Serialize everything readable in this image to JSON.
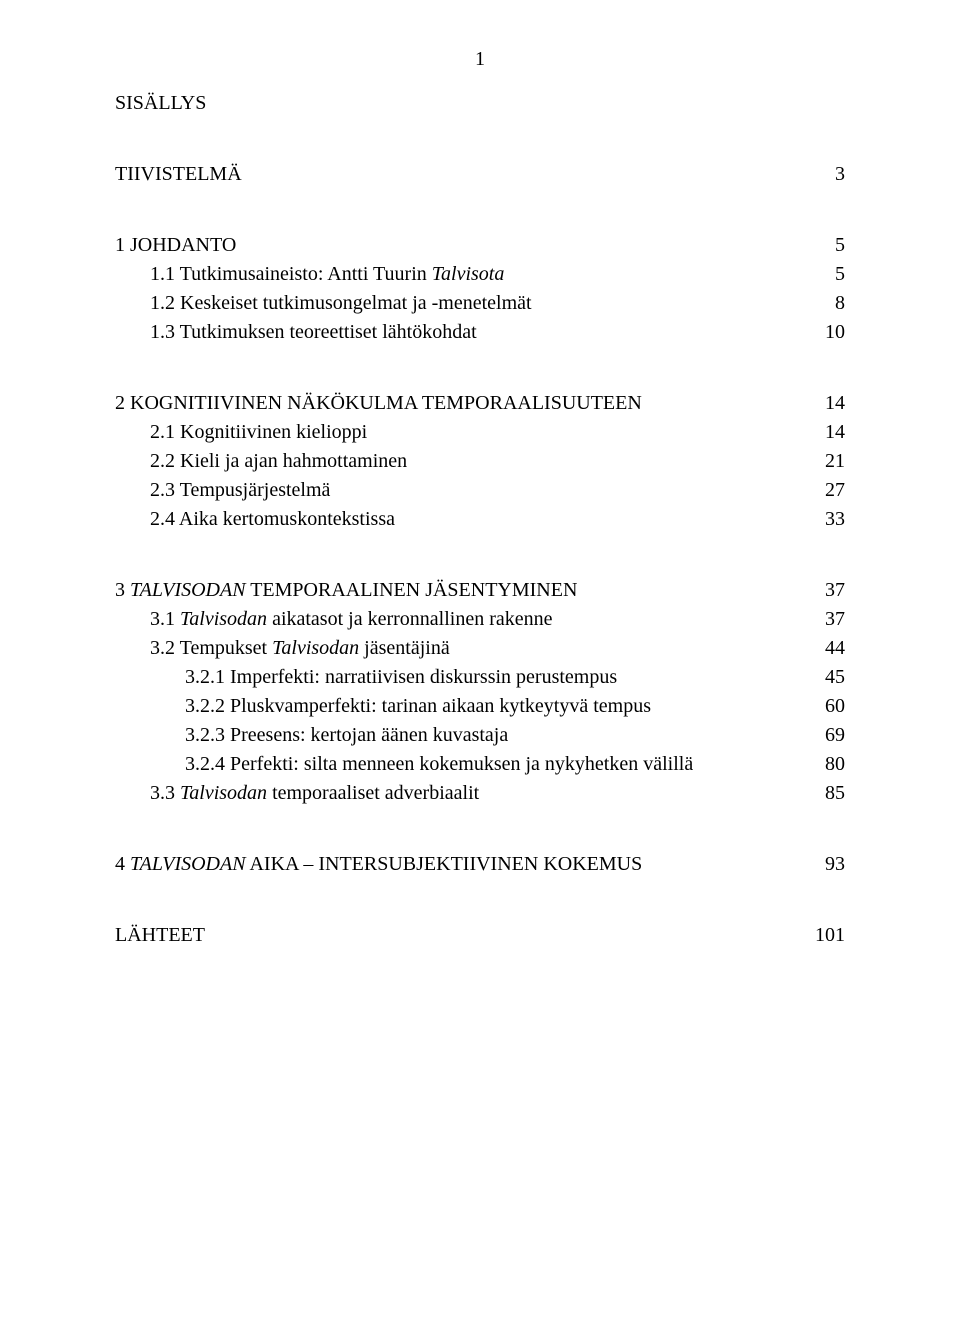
{
  "page_number": "1",
  "section_headings": {
    "sisallys": "SISÄLLYS"
  },
  "entries": {
    "tiivistelma": {
      "label": "TIIVISTELMÄ",
      "page": "3"
    },
    "c1": {
      "label": "1 JOHDANTO",
      "page": "5"
    },
    "c1_1": {
      "prefix": "1.1 Tutkimusaineisto: Antti Tuurin ",
      "italic": "Talvisota",
      "page": "5"
    },
    "c1_2": {
      "label": "1.2 Keskeiset tutkimusongelmat ja -menetelmät",
      "page": "8"
    },
    "c1_3": {
      "label": "1.3 Tutkimuksen teoreettiset lähtökohdat",
      "page": "10"
    },
    "c2": {
      "label": "2 KOGNITIIVINEN NÄKÖKULMA TEMPORAALISUUTEEN",
      "page": "14"
    },
    "c2_1": {
      "label": "2.1 Kognitiivinen kielioppi",
      "page": "14"
    },
    "c2_2": {
      "label": "2.2 Kieli ja ajan hahmottaminen",
      "page": "21"
    },
    "c2_3": {
      "label": "2.3 Tempusjärjestelmä",
      "page": "27"
    },
    "c2_4": {
      "label": "2.4 Aika kertomuskontekstissa",
      "page": "33"
    },
    "c3": {
      "prefix": "3 ",
      "italic": "TALVISODAN",
      "suffix": " TEMPORAALINEN JÄSENTYMINEN",
      "page": "37"
    },
    "c3_1": {
      "prefix": "3.1 ",
      "italic": "Talvisodan",
      "suffix": " aikatasot ja kerronnallinen rakenne",
      "page": "37"
    },
    "c3_2": {
      "prefix": "3.2 Tempukset ",
      "italic": "Talvisodan",
      "suffix": " jäsentäjinä",
      "page": "44"
    },
    "c3_2_1": {
      "label": "3.2.1 Imperfekti: narratiivisen diskurssin perustempus",
      "page": "45"
    },
    "c3_2_2": {
      "label": "3.2.2 Pluskvamperfekti: tarinan aikaan kytkeytyvä tempus",
      "page": "60"
    },
    "c3_2_3": {
      "label": "3.2.3 Preesens: kertojan äänen kuvastaja",
      "page": "69"
    },
    "c3_2_4": {
      "label": "3.2.4 Perfekti: silta menneen kokemuksen ja nykyhetken välillä",
      "page": "80"
    },
    "c3_3": {
      "prefix": "3.3 ",
      "italic": "Talvisodan",
      "suffix": " temporaaliset adverbiaalit",
      "page": "85"
    },
    "c4": {
      "prefix": "4 ",
      "italic": "TALVISODAN",
      "suffix": " AIKA – INTERSUBJEKTIIVINEN KOKEMUS",
      "page": "93"
    },
    "lahteet": {
      "label": "LÄHTEET",
      "page": "101"
    }
  }
}
